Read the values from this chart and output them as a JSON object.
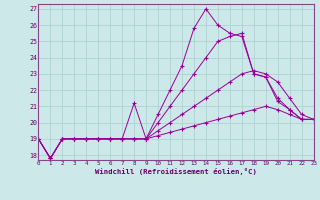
{
  "xlabel": "Windchill (Refroidissement éolien,°C)",
  "ylabel": "",
  "xlim": [
    0,
    23
  ],
  "ylim": [
    17.7,
    27.3
  ],
  "yticks": [
    18,
    19,
    20,
    21,
    22,
    23,
    24,
    25,
    26,
    27
  ],
  "xticks": [
    0,
    1,
    2,
    3,
    4,
    5,
    6,
    7,
    8,
    9,
    10,
    11,
    12,
    13,
    14,
    15,
    16,
    17,
    18,
    19,
    20,
    21,
    22,
    23
  ],
  "background_color": "#cce8e8",
  "grid_color": "#aacece",
  "line_color": "#990099",
  "lines": [
    {
      "x": [
        0,
        1,
        2,
        3,
        4,
        5,
        6,
        7,
        8,
        9,
        10,
        11,
        12,
        13,
        14,
        15,
        16,
        17,
        18,
        19,
        20,
        21,
        22,
        23
      ],
      "y": [
        19.0,
        17.8,
        19.0,
        19.0,
        19.0,
        19.0,
        19.0,
        19.0,
        19.0,
        19.0,
        19.2,
        19.4,
        19.6,
        19.8,
        20.0,
        20.2,
        20.4,
        20.6,
        20.8,
        21.0,
        20.8,
        20.5,
        20.2,
        20.2
      ]
    },
    {
      "x": [
        0,
        1,
        2,
        3,
        4,
        5,
        6,
        7,
        8,
        9,
        10,
        11,
        12,
        13,
        14,
        15,
        16,
        17,
        18,
        19,
        20,
        21,
        22,
        23
      ],
      "y": [
        19.0,
        17.8,
        19.0,
        19.0,
        19.0,
        19.0,
        19.0,
        19.0,
        19.0,
        19.0,
        19.5,
        20.0,
        20.5,
        21.0,
        21.5,
        22.0,
        22.5,
        23.0,
        23.2,
        23.0,
        22.5,
        21.5,
        20.5,
        20.2
      ]
    },
    {
      "x": [
        0,
        1,
        2,
        3,
        4,
        5,
        6,
        7,
        8,
        9,
        10,
        11,
        12,
        13,
        14,
        15,
        16,
        17,
        18,
        19,
        20,
        21,
        22,
        23
      ],
      "y": [
        19.0,
        17.8,
        19.0,
        19.0,
        19.0,
        19.0,
        19.0,
        19.0,
        21.2,
        19.0,
        20.0,
        21.0,
        22.0,
        23.0,
        24.0,
        25.0,
        25.3,
        25.5,
        23.0,
        22.8,
        21.5,
        20.8,
        20.2,
        20.2
      ]
    },
    {
      "x": [
        0,
        1,
        2,
        3,
        4,
        5,
        6,
        7,
        8,
        9,
        10,
        11,
        12,
        13,
        14,
        15,
        16,
        17,
        18,
        19,
        20,
        21,
        22,
        23
      ],
      "y": [
        19.0,
        17.8,
        19.0,
        19.0,
        19.0,
        19.0,
        19.0,
        19.0,
        19.0,
        19.0,
        20.5,
        22.0,
        23.5,
        25.8,
        27.0,
        26.0,
        25.5,
        25.3,
        23.0,
        22.8,
        21.3,
        20.8,
        20.2,
        20.2
      ]
    }
  ]
}
